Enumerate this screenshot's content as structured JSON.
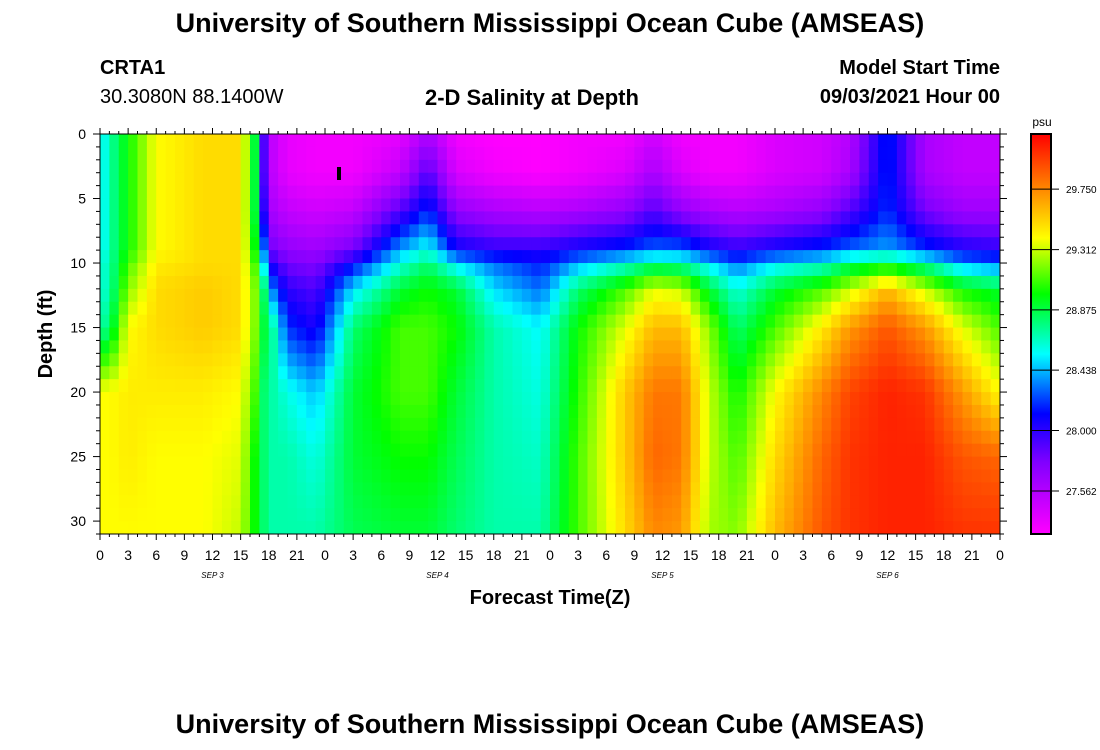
{
  "page": {
    "title_top": "University of Southern Mississippi Ocean Cube (AMSEAS)",
    "title_bottom": "University of Southern Mississippi Ocean Cube (AMSEAS)",
    "station": "CRTA1",
    "coords": "30.3080N  88.1400W",
    "plot_title": "2-D Salinity at Depth",
    "model_start_label": "Model Start Time",
    "model_start_value": "09/03/2021 Hour 00"
  },
  "chart_data": {
    "type": "heatmap",
    "title": "2-D Salinity at Depth",
    "xlabel": "Forecast Time(Z)",
    "ylabel": "Depth (ft)",
    "x_range_hours": [
      0,
      96
    ],
    "y_range_ft": [
      0,
      31
    ],
    "y_ticks": [
      "0",
      "5",
      "10",
      "15",
      "20",
      "25",
      "30"
    ],
    "x_ticks": [
      "0",
      "3",
      "6",
      "9",
      "12",
      "15",
      "18",
      "21",
      "0",
      "3",
      "6",
      "9",
      "12",
      "15",
      "18",
      "21",
      "0",
      "3",
      "6",
      "9",
      "12",
      "15",
      "18",
      "21",
      "0",
      "3",
      "6",
      "9",
      "12",
      "15",
      "18",
      "21",
      "0"
    ],
    "date_labels": [
      "SEP 3",
      "SEP 4",
      "SEP 5",
      "SEP 6"
    ],
    "colorbar": {
      "unit": "psu",
      "min": 27.25,
      "max": 30.15,
      "tick_labels": [
        "29.750",
        "29.312",
        "28.875",
        "28.438",
        "28.000",
        "27.562"
      ],
      "tick_values": [
        29.75,
        29.312,
        28.875,
        28.438,
        28.0,
        27.562
      ],
      "colors": [
        "#ff00ff",
        "#8000ff",
        "#0000ff",
        "#00ffff",
        "#00ff00",
        "#ffff00",
        "#ff8000",
        "#ff0000"
      ]
    },
    "profiles": {
      "description": "approximate salinity (psu) at depths 0,3,6,9,10,12,15,20,25,31 ft for hours 0..96",
      "depths_ft": [
        0,
        3,
        6,
        9,
        10,
        12,
        15,
        20,
        25,
        31
      ],
      "columns": [
        {
          "hour": 0,
          "values": [
            28.5,
            28.5,
            28.5,
            28.5,
            28.6,
            28.6,
            28.7,
            29.4,
            29.4,
            29.4
          ]
        },
        {
          "hour": 1,
          "values": [
            28.7,
            28.7,
            28.7,
            28.7,
            28.7,
            28.7,
            28.8,
            29.4,
            29.4,
            29.4
          ]
        },
        {
          "hour": 3,
          "values": [
            29.0,
            29.0,
            29.0,
            29.0,
            29.1,
            29.2,
            29.4,
            29.45,
            29.45,
            29.4
          ]
        },
        {
          "hour": 6,
          "values": [
            29.4,
            29.4,
            29.4,
            29.4,
            29.45,
            29.5,
            29.5,
            29.45,
            29.4,
            29.4
          ]
        },
        {
          "hour": 11,
          "values": [
            29.5,
            29.5,
            29.5,
            29.5,
            29.5,
            29.55,
            29.55,
            29.45,
            29.4,
            29.4
          ]
        },
        {
          "hour": 15,
          "values": [
            29.5,
            29.5,
            29.5,
            29.5,
            29.5,
            29.5,
            29.5,
            29.4,
            29.35,
            29.3
          ]
        },
        {
          "hour": 16.5,
          "values": [
            28.9,
            28.9,
            28.9,
            29.0,
            29.1,
            29.2,
            29.2,
            29.1,
            29.0,
            29.0
          ]
        },
        {
          "hour": 17.5,
          "values": [
            27.9,
            27.9,
            28.0,
            28.3,
            28.5,
            28.8,
            28.9,
            28.8,
            28.8,
            28.8
          ]
        },
        {
          "hour": 18.5,
          "values": [
            27.5,
            27.5,
            27.6,
            27.8,
            28.0,
            28.3,
            28.7,
            28.7,
            28.7,
            28.7
          ]
        },
        {
          "hour": 20,
          "values": [
            27.35,
            27.35,
            27.5,
            27.7,
            27.8,
            28.0,
            28.2,
            28.6,
            28.7,
            28.7
          ]
        },
        {
          "hour": 23,
          "values": [
            27.3,
            27.3,
            27.45,
            27.65,
            27.75,
            27.9,
            28.05,
            28.45,
            28.6,
            28.7
          ]
        },
        {
          "hour": 27,
          "values": [
            27.3,
            27.3,
            27.5,
            27.8,
            28.1,
            28.5,
            28.8,
            28.9,
            28.9,
            28.85
          ]
        },
        {
          "hour": 32,
          "values": [
            27.35,
            27.5,
            27.9,
            28.4,
            28.6,
            28.9,
            29.1,
            29.1,
            29.0,
            28.9
          ]
        },
        {
          "hour": 35,
          "values": [
            27.6,
            27.9,
            28.2,
            28.6,
            28.8,
            29.0,
            29.1,
            29.1,
            29.0,
            28.9
          ]
        },
        {
          "hour": 38,
          "values": [
            27.3,
            27.4,
            27.7,
            28.1,
            28.5,
            28.9,
            29.0,
            28.9,
            28.85,
            28.8
          ]
        },
        {
          "hour": 42,
          "values": [
            27.25,
            27.3,
            27.6,
            28.0,
            28.3,
            28.5,
            28.7,
            28.7,
            28.7,
            28.7
          ]
        },
        {
          "hour": 47,
          "values": [
            27.25,
            27.25,
            27.55,
            28.0,
            28.15,
            28.3,
            28.55,
            28.6,
            28.65,
            28.7
          ]
        },
        {
          "hour": 51,
          "values": [
            27.3,
            27.3,
            27.6,
            28.1,
            28.4,
            28.8,
            29.0,
            29.05,
            29.1,
            29.1
          ]
        },
        {
          "hour": 56,
          "values": [
            27.3,
            27.4,
            27.7,
            28.2,
            28.6,
            29.1,
            29.35,
            29.55,
            29.55,
            29.5
          ]
        },
        {
          "hour": 59,
          "values": [
            27.45,
            27.6,
            27.9,
            28.3,
            28.75,
            29.35,
            29.6,
            29.8,
            29.85,
            29.75
          ]
        },
        {
          "hour": 62,
          "values": [
            27.3,
            27.4,
            27.7,
            28.3,
            28.7,
            29.3,
            29.6,
            29.8,
            29.8,
            29.7
          ]
        },
        {
          "hour": 65,
          "values": [
            27.3,
            27.3,
            27.6,
            28.1,
            28.5,
            28.9,
            29.2,
            29.3,
            29.3,
            29.25
          ]
        },
        {
          "hour": 68,
          "values": [
            27.3,
            27.3,
            27.55,
            28.0,
            28.3,
            28.6,
            28.8,
            29.0,
            29.1,
            29.2
          ]
        },
        {
          "hour": 72,
          "values": [
            27.4,
            27.4,
            27.6,
            28.1,
            28.5,
            28.9,
            29.1,
            29.4,
            29.5,
            29.6
          ]
        },
        {
          "hour": 77,
          "values": [
            27.45,
            27.45,
            27.7,
            28.2,
            28.6,
            29.1,
            29.45,
            29.75,
            29.85,
            29.9
          ]
        },
        {
          "hour": 80,
          "values": [
            27.55,
            27.6,
            27.9,
            28.3,
            28.8,
            29.3,
            29.7,
            29.95,
            30.0,
            30.0
          ]
        },
        {
          "hour": 84,
          "values": [
            28.2,
            28.2,
            28.2,
            28.4,
            28.9,
            29.6,
            29.9,
            30.05,
            30.05,
            30.05
          ]
        },
        {
          "hour": 88,
          "values": [
            27.6,
            27.6,
            27.8,
            28.2,
            28.7,
            29.3,
            29.7,
            30.0,
            30.05,
            30.05
          ]
        },
        {
          "hour": 92,
          "values": [
            27.5,
            27.5,
            27.65,
            28.05,
            28.4,
            29.0,
            29.35,
            29.7,
            29.9,
            30.0
          ]
        },
        {
          "hour": 96,
          "values": [
            27.5,
            27.5,
            27.65,
            28.0,
            28.3,
            28.9,
            29.1,
            29.4,
            29.85,
            30.0
          ]
        }
      ]
    }
  }
}
